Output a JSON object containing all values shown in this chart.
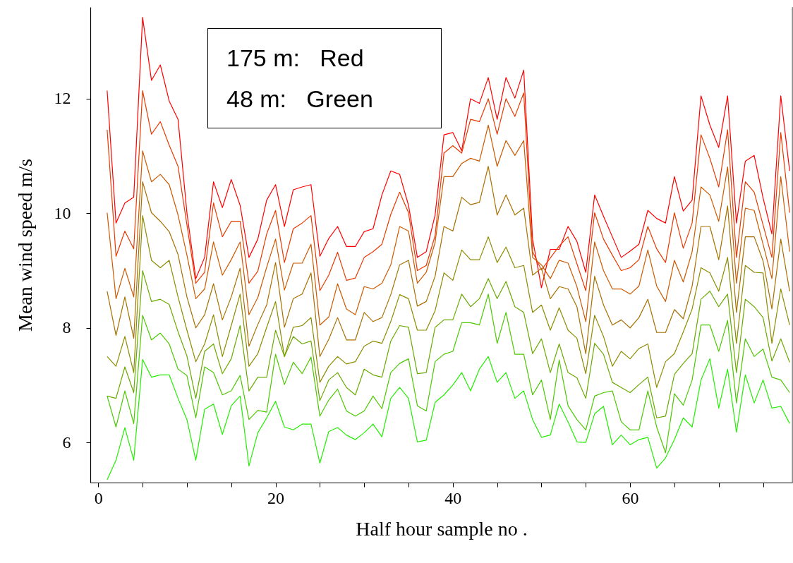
{
  "chart_data": {
    "type": "line",
    "xlabel": "Half hour sample no .",
    "ylabel": "Mean wind speed m/s",
    "annotations": [
      "175 m:   Red",
      "48 m:   Green"
    ],
    "x": [
      1,
      2,
      3,
      4,
      5,
      6,
      7,
      8,
      9,
      10,
      11,
      12,
      13,
      14,
      15,
      16,
      17,
      18,
      19,
      20,
      21,
      22,
      23,
      24,
      25,
      26,
      27,
      28,
      29,
      30,
      31,
      32,
      33,
      34,
      35,
      36,
      37,
      38,
      39,
      40,
      41,
      42,
      43,
      44,
      45,
      46,
      47,
      48,
      49,
      50,
      51,
      52,
      53,
      54,
      55,
      56,
      57,
      58,
      59,
      60,
      61,
      62,
      63,
      64,
      65,
      66,
      67,
      68,
      69,
      70,
      71,
      72,
      73,
      74,
      75,
      76,
      77,
      78
    ],
    "xlim": [
      -0.9,
      78.3
    ],
    "xticks": [
      0,
      {
        "value": 5,
        "label": null
      },
      {
        "value": 10,
        "label": null
      },
      {
        "value": 15,
        "label": null
      },
      20,
      {
        "value": 25,
        "label": null
      },
      {
        "value": 30,
        "label": null
      },
      {
        "value": 35,
        "label": null
      },
      40,
      {
        "value": 45,
        "label": null
      },
      {
        "value": 50,
        "label": null
      },
      {
        "value": 55,
        "label": null
      },
      60,
      {
        "value": 65,
        "label": null
      },
      {
        "value": 70,
        "label": null
      },
      {
        "value": 75,
        "label": null
      }
    ],
    "ylim": [
      5.3,
      13.6
    ],
    "yticks": [
      6,
      8,
      10,
      12
    ],
    "series": [
      {
        "color": "#ff0000",
        "values": [
          12.14,
          9.83,
          10.18,
          10.28,
          13.42,
          12.32,
          12.59,
          11.96,
          11.64,
          10.01,
          8.86,
          9.23,
          10.55,
          10.1,
          10.59,
          10.14,
          9.23,
          9.55,
          10.23,
          10.5,
          9.77,
          10.41,
          10.46,
          10.5,
          9.25,
          9.56,
          9.77,
          9.42,
          9.42,
          9.68,
          9.73,
          10.32,
          10.74,
          10.68,
          10.14,
          9.23,
          9.33,
          9.97,
          11.37,
          11.41,
          11.09,
          12.0,
          11.92,
          12.37,
          11.64,
          12.37,
          12.01,
          12.5,
          9.55,
          8.7,
          9.37,
          9.37,
          9.77,
          9.51,
          8.97,
          10.32,
          9.95,
          9.59,
          9.23,
          9.34,
          9.46,
          10.05,
          9.91,
          9.83,
          10.64,
          10.04,
          10.23,
          12.05,
          11.54,
          11.15,
          12.05,
          9.83,
          10.91,
          11.01,
          10.27,
          9.64,
          12.05,
          10.74
        ]
      },
      {
        "color": "#e83a00",
        "values": [
          11.46,
          9.25,
          9.69,
          9.38,
          12.14,
          11.38,
          11.6,
          11.19,
          10.82,
          9.8,
          8.78,
          8.97,
          10.18,
          9.59,
          9.86,
          9.86,
          8.78,
          8.99,
          9.64,
          10.05,
          9.14,
          9.73,
          9.83,
          9.96,
          8.65,
          8.92,
          9.32,
          8.83,
          8.87,
          9.23,
          9.33,
          9.46,
          9.98,
          10.37,
          10.01,
          9.0,
          9.09,
          9.61,
          11.05,
          11.18,
          11.05,
          11.64,
          11.6,
          12.0,
          11.38,
          12.0,
          11.69,
          12.1,
          9.33,
          9.01,
          9.22,
          9.43,
          9.59,
          9.12,
          8.65,
          10.01,
          9.55,
          9.27,
          9.0,
          9.05,
          9.19,
          9.77,
          9.38,
          9.14,
          10.01,
          9.39,
          9.83,
          11.37,
          10.96,
          10.46,
          11.46,
          9.23,
          10.55,
          10.37,
          9.8,
          9.23,
          11.41,
          10.01
        ]
      },
      {
        "color": "#cc5a00",
        "values": [
          10.01,
          8.51,
          9.04,
          8.54,
          11.09,
          10.55,
          10.68,
          10.5,
          9.97,
          9.27,
          8.51,
          8.68,
          9.5,
          8.92,
          9.19,
          9.5,
          8.23,
          8.53,
          9.06,
          9.55,
          8.66,
          9.13,
          9.13,
          9.46,
          8.05,
          8.19,
          8.77,
          8.33,
          8.23,
          8.72,
          8.68,
          8.78,
          9.1,
          9.77,
          9.69,
          8.78,
          8.97,
          9.49,
          10.64,
          10.64,
          10.87,
          10.96,
          10.91,
          11.54,
          10.82,
          11.27,
          11.01,
          11.27,
          9.23,
          9.1,
          8.86,
          9.18,
          9.13,
          8.72,
          8.11,
          9.5,
          9.0,
          8.68,
          8.68,
          8.59,
          8.73,
          9.36,
          8.73,
          8.46,
          9.18,
          8.8,
          9.33,
          10.46,
          10.32,
          9.86,
          10.81,
          8.78,
          10.09,
          10.05,
          9.46,
          8.86,
          10.64,
          9.33
        ]
      },
      {
        "color": "#a87000",
        "values": [
          8.64,
          7.87,
          8.54,
          7.82,
          10.55,
          10.01,
          9.86,
          9.68,
          9.28,
          8.54,
          8.0,
          8.23,
          8.77,
          8.14,
          8.54,
          9.04,
          7.68,
          8.06,
          8.4,
          9.14,
          8.01,
          8.51,
          8.59,
          8.96,
          7.5,
          7.8,
          8.18,
          7.79,
          7.79,
          8.27,
          8.11,
          8.18,
          8.58,
          9.1,
          9.18,
          8.38,
          8.46,
          8.9,
          9.77,
          9.69,
          10.28,
          10.15,
          10.19,
          10.82,
          9.97,
          10.32,
          9.97,
          10.09,
          8.92,
          9.04,
          8.51,
          8.72,
          8.68,
          8.37,
          7.55,
          8.9,
          8.4,
          8.05,
          8.14,
          8.0,
          8.18,
          8.5,
          7.92,
          7.92,
          8.32,
          8.16,
          8.73,
          9.77,
          9.77,
          9.19,
          10.13,
          8.27,
          9.59,
          9.59,
          9.17,
          8.33,
          9.55,
          8.64
        ]
      },
      {
        "color": "#8c8c00",
        "values": [
          7.5,
          7.33,
          7.85,
          7.22,
          9.96,
          9.18,
          9.05,
          9.18,
          8.54,
          7.96,
          7.41,
          7.72,
          8.23,
          7.5,
          8.04,
          8.59,
          7.33,
          7.55,
          8.01,
          8.46,
          7.5,
          8.01,
          8.04,
          8.18,
          7.05,
          7.33,
          7.5,
          7.37,
          7.41,
          7.68,
          7.77,
          7.73,
          8.11,
          8.58,
          8.51,
          7.96,
          7.96,
          8.3,
          8.96,
          8.83,
          9.36,
          9.19,
          9.19,
          9.59,
          9.14,
          9.41,
          9.05,
          9.09,
          8.27,
          8.4,
          7.96,
          8.35,
          7.96,
          7.82,
          7.2,
          8.22,
          7.85,
          7.33,
          7.59,
          7.46,
          7.64,
          7.72,
          6.96,
          7.41,
          7.55,
          7.93,
          8.33,
          9.05,
          8.96,
          8.64,
          9.23,
          7.73,
          9.09,
          8.97,
          8.96,
          7.73,
          8.68,
          8.05
        ]
      },
      {
        "color": "#6aaa00",
        "values": [
          6.81,
          6.77,
          7.32,
          6.87,
          9.0,
          8.46,
          8.5,
          8.41,
          7.93,
          7.51,
          6.77,
          7.59,
          7.72,
          7.2,
          7.46,
          8.04,
          6.9,
          7.14,
          7.14,
          7.96,
          7.5,
          7.85,
          7.72,
          7.77,
          6.73,
          7.09,
          7.22,
          6.96,
          6.83,
          7.28,
          7.18,
          7.14,
          7.77,
          8.04,
          8.01,
          7.2,
          7.22,
          8.01,
          8.14,
          8.14,
          8.59,
          8.37,
          8.51,
          8.86,
          8.51,
          8.81,
          8.37,
          8.27,
          7.55,
          7.81,
          7.22,
          7.72,
          7.22,
          7.13,
          6.77,
          7.73,
          7.54,
          7.05,
          6.96,
          6.87,
          7.01,
          7.14,
          6.43,
          6.46,
          7.19,
          7.38,
          7.55,
          8.5,
          8.64,
          8.37,
          8.59,
          7.22,
          8.5,
          8.37,
          8.18,
          7.42,
          7.81,
          7.4
        ]
      },
      {
        "color": "#4cc800",
        "values": [
          6.81,
          6.27,
          6.9,
          6.33,
          8.22,
          7.79,
          7.91,
          7.72,
          7.28,
          7.17,
          6.43,
          7.32,
          7.22,
          6.83,
          6.9,
          7.17,
          6.4,
          6.56,
          6.53,
          7.54,
          7.01,
          7.4,
          7.2,
          7.49,
          6.46,
          6.74,
          6.93,
          6.55,
          6.46,
          6.55,
          6.81,
          6.59,
          7.22,
          7.38,
          7.46,
          6.64,
          6.55,
          7.41,
          7.54,
          7.59,
          8.09,
          8.09,
          8.05,
          8.59,
          7.73,
          8.27,
          7.54,
          7.54,
          6.83,
          7.09,
          6.4,
          7.44,
          6.64,
          6.4,
          6.22,
          6.81,
          6.87,
          6.9,
          6.36,
          6.22,
          6.22,
          6.9,
          6.27,
          5.82,
          6.85,
          6.65,
          7.09,
          8.05,
          8.05,
          7.59,
          8.13,
          6.69,
          7.81,
          7.5,
          7.63,
          7.14,
          7.09,
          6.87
        ]
      },
      {
        "color": "#22ee00",
        "values": [
          5.35,
          5.69,
          6.26,
          5.69,
          7.45,
          7.14,
          7.18,
          7.18,
          6.77,
          6.4,
          5.69,
          6.58,
          6.67,
          6.14,
          6.64,
          6.81,
          5.59,
          6.17,
          6.43,
          6.72,
          6.27,
          6.22,
          6.32,
          6.32,
          5.64,
          6.19,
          6.26,
          6.13,
          6.05,
          6.17,
          6.32,
          6.1,
          6.77,
          6.96,
          6.77,
          6.01,
          6.04,
          6.7,
          6.83,
          7.0,
          7.22,
          6.9,
          7.28,
          7.5,
          7.05,
          7.22,
          6.77,
          6.9,
          6.4,
          6.09,
          6.13,
          6.67,
          6.36,
          6.01,
          6.0,
          6.5,
          6.63,
          5.96,
          6.13,
          5.96,
          6.05,
          6.09,
          5.55,
          5.73,
          6.05,
          6.43,
          6.27,
          7.09,
          7.46,
          6.6,
          7.28,
          6.18,
          7.18,
          6.69,
          7.09,
          6.6,
          6.63,
          6.33
        ]
      }
    ]
  }
}
